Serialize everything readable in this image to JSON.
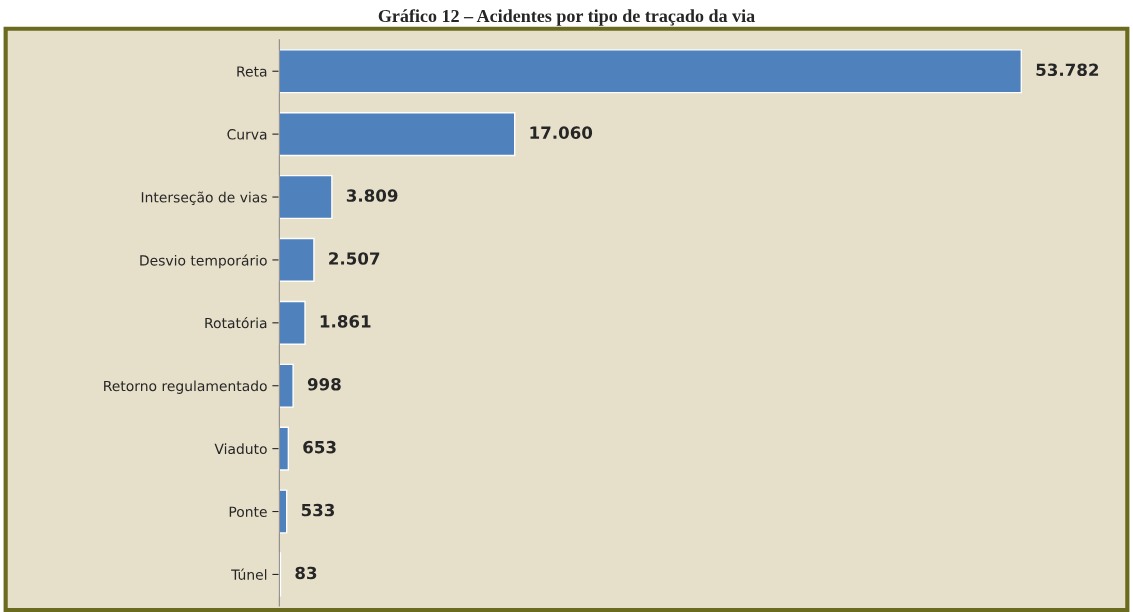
{
  "chart_data": {
    "type": "bar",
    "orientation": "horizontal",
    "title": "Gráfico 12 – Acidentes por tipo de traçado da via",
    "categories": [
      "Reta",
      "Curva",
      "Interseção de vias",
      "Desvio temporário",
      "Rotatória",
      "Retorno regulamentado",
      "Viaduto",
      "Ponte",
      "Túnel"
    ],
    "values": [
      53782,
      17060,
      3809,
      2507,
      1861,
      998,
      653,
      533,
      83
    ],
    "value_labels": [
      "53.782",
      "17.060",
      "3.809",
      "2.507",
      "1.861",
      "998",
      "653",
      "533",
      "83"
    ],
    "color": "#4f81bd",
    "grid": false,
    "legend": false
  }
}
